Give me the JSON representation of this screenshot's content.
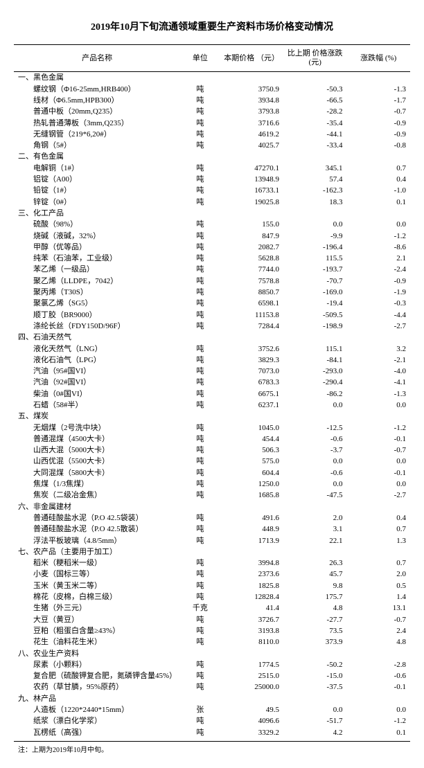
{
  "title": "2019年10月下旬流通领域重要生产资料市场价格变动情况",
  "columns": [
    "产品名称",
    "单位",
    "本期价格\n（元）",
    "比上期\n价格涨跌(元)",
    "涨跌幅 (%)"
  ],
  "footnote": "注：上期为2019年10月中旬。",
  "sections": [
    {
      "heading": "一、黑色金属",
      "rows": [
        {
          "name": "螺纹钢（Φ16-25mm,HRB400）",
          "unit": "吨",
          "price": "3750.9",
          "delta": "-50.3",
          "pct": "-1.3"
        },
        {
          "name": "线材（Φ6.5mm,HPB300）",
          "unit": "吨",
          "price": "3934.8",
          "delta": "-66.5",
          "pct": "-1.7"
        },
        {
          "name": "普通中板（20mm,Q235）",
          "unit": "吨",
          "price": "3793.8",
          "delta": "-28.2",
          "pct": "-0.7"
        },
        {
          "name": "热轧普通薄板（3mm,Q235）",
          "unit": "吨",
          "price": "3716.6",
          "delta": "-35.4",
          "pct": "-0.9"
        },
        {
          "name": "无缝钢管（219*6,20#）",
          "unit": "吨",
          "price": "4619.2",
          "delta": "-44.1",
          "pct": "-0.9"
        },
        {
          "name": "角钢（5#）",
          "unit": "吨",
          "price": "4025.7",
          "delta": "-33.4",
          "pct": "-0.8"
        }
      ]
    },
    {
      "heading": "二、有色金属",
      "rows": [
        {
          "name": "电解铜（1#）",
          "unit": "吨",
          "price": "47270.1",
          "delta": "345.1",
          "pct": "0.7"
        },
        {
          "name": "铝锭（A00）",
          "unit": "吨",
          "price": "13948.9",
          "delta": "57.4",
          "pct": "0.4"
        },
        {
          "name": "铅锭（1#）",
          "unit": "吨",
          "price": "16733.1",
          "delta": "-162.3",
          "pct": "-1.0"
        },
        {
          "name": "锌锭（0#）",
          "unit": "吨",
          "price": "19025.8",
          "delta": "18.3",
          "pct": "0.1"
        }
      ]
    },
    {
      "heading": "三、化工产品",
      "rows": [
        {
          "name": "硫酸（98%）",
          "unit": "吨",
          "price": "155.0",
          "delta": "0.0",
          "pct": "0.0"
        },
        {
          "name": "烧碱（液碱，32%）",
          "unit": "吨",
          "price": "847.9",
          "delta": "-9.9",
          "pct": "-1.2"
        },
        {
          "name": "甲醇（优等品）",
          "unit": "吨",
          "price": "2082.7",
          "delta": "-196.4",
          "pct": "-8.6"
        },
        {
          "name": "纯苯（石油苯，工业级）",
          "unit": "吨",
          "price": "5628.8",
          "delta": "115.5",
          "pct": "2.1"
        },
        {
          "name": "苯乙烯（一级品）",
          "unit": "吨",
          "price": "7744.0",
          "delta": "-193.7",
          "pct": "-2.4"
        },
        {
          "name": "聚乙烯（LLDPE，7042）",
          "unit": "吨",
          "price": "7578.8",
          "delta": "-70.7",
          "pct": "-0.9"
        },
        {
          "name": "聚丙烯（T30S）",
          "unit": "吨",
          "price": "8850.7",
          "delta": "-169.0",
          "pct": "-1.9"
        },
        {
          "name": "聚氯乙烯（SG5）",
          "unit": "吨",
          "price": "6598.1",
          "delta": "-19.4",
          "pct": "-0.3"
        },
        {
          "name": "顺丁胶（BR9000）",
          "unit": "吨",
          "price": "11153.8",
          "delta": "-509.5",
          "pct": "-4.4"
        },
        {
          "name": "涤纶长丝（FDY150D/96F）",
          "unit": "吨",
          "price": "7284.4",
          "delta": "-198.9",
          "pct": "-2.7"
        }
      ]
    },
    {
      "heading": "四、石油天然气",
      "rows": [
        {
          "name": "液化天然气（LNG）",
          "unit": "吨",
          "price": "3752.6",
          "delta": "115.1",
          "pct": "3.2"
        },
        {
          "name": "液化石油气（LPG）",
          "unit": "吨",
          "price": "3829.3",
          "delta": "-84.1",
          "pct": "-2.1"
        },
        {
          "name": "汽油（95#国VI）",
          "unit": "吨",
          "price": "7073.0",
          "delta": "-293.0",
          "pct": "-4.0"
        },
        {
          "name": "汽油（92#国VI）",
          "unit": "吨",
          "price": "6783.3",
          "delta": "-290.4",
          "pct": "-4.1"
        },
        {
          "name": "柴油（0#国VI）",
          "unit": "吨",
          "price": "6675.1",
          "delta": "-86.2",
          "pct": "-1.3"
        },
        {
          "name": "石蜡（58#半）",
          "unit": "吨",
          "price": "6237.1",
          "delta": "0.0",
          "pct": "0.0"
        }
      ]
    },
    {
      "heading": "五、煤炭",
      "rows": [
        {
          "name": "无烟煤（2号洗中块）",
          "unit": "吨",
          "price": "1045.0",
          "delta": "-12.5",
          "pct": "-1.2"
        },
        {
          "name": "普通混煤（4500大卡）",
          "unit": "吨",
          "price": "454.4",
          "delta": "-0.6",
          "pct": "-0.1"
        },
        {
          "name": "山西大混（5000大卡）",
          "unit": "吨",
          "price": "506.3",
          "delta": "-3.7",
          "pct": "-0.7"
        },
        {
          "name": "山西优混（5500大卡）",
          "unit": "吨",
          "price": "575.0",
          "delta": "0.0",
          "pct": "0.0"
        },
        {
          "name": "大同混煤（5800大卡）",
          "unit": "吨",
          "price": "604.4",
          "delta": "-0.6",
          "pct": "-0.1"
        },
        {
          "name": "焦煤（1/3焦煤）",
          "unit": "吨",
          "price": "1250.0",
          "delta": "0.0",
          "pct": "0.0"
        },
        {
          "name": "焦炭（二级冶金焦）",
          "unit": "吨",
          "price": "1685.8",
          "delta": "-47.5",
          "pct": "-2.7"
        }
      ]
    },
    {
      "heading": "六、非金属建材",
      "rows": [
        {
          "name": "普通硅酸盐水泥（P.O 42.5袋装）",
          "unit": "吨",
          "price": "491.6",
          "delta": "2.0",
          "pct": "0.4"
        },
        {
          "name": "普通硅酸盐水泥（P.O 42.5散装）",
          "unit": "吨",
          "price": "448.9",
          "delta": "3.1",
          "pct": "0.7"
        },
        {
          "name": "浮法平板玻璃（4.8/5mm）",
          "unit": "吨",
          "price": "1713.9",
          "delta": "22.1",
          "pct": "1.3"
        }
      ]
    },
    {
      "heading": "七、农产品（主要用于加工）",
      "rows": [
        {
          "name": "稻米（粳稻米一级）",
          "unit": "吨",
          "price": "3994.8",
          "delta": "26.3",
          "pct": "0.7"
        },
        {
          "name": "小麦（国标三等）",
          "unit": "吨",
          "price": "2373.6",
          "delta": "45.7",
          "pct": "2.0"
        },
        {
          "name": "玉米（黄玉米二等）",
          "unit": "吨",
          "price": "1825.8",
          "delta": "9.8",
          "pct": "0.5"
        },
        {
          "name": "棉花（皮棉，白棉三级）",
          "unit": "吨",
          "price": "12828.4",
          "delta": "175.7",
          "pct": "1.4"
        },
        {
          "name": "生猪（外三元）",
          "unit": "千克",
          "price": "41.4",
          "delta": "4.8",
          "pct": "13.1"
        },
        {
          "name": "大豆（黄豆）",
          "unit": "吨",
          "price": "3726.7",
          "delta": "-27.7",
          "pct": "-0.7"
        },
        {
          "name": "豆粕（粗蛋白含量≥43%）",
          "unit": "吨",
          "price": "3193.8",
          "delta": "73.5",
          "pct": "2.4"
        },
        {
          "name": "花生（油料花生米）",
          "unit": "吨",
          "price": "8110.0",
          "delta": "373.9",
          "pct": "4.8"
        }
      ]
    },
    {
      "heading": "八、农业生产资料",
      "rows": [
        {
          "name": "尿素（小颗料）",
          "unit": "吨",
          "price": "1774.5",
          "delta": "-50.2",
          "pct": "-2.8"
        },
        {
          "name": "复合肥（硫酸钾复合肥，氮磷钾含量45%）",
          "unit": "吨",
          "price": "2515.0",
          "delta": "-15.0",
          "pct": "-0.6"
        },
        {
          "name": "农药（草甘膦，95%原药）",
          "unit": "吨",
          "price": "25000.0",
          "delta": "-37.5",
          "pct": "-0.1"
        }
      ]
    },
    {
      "heading": "九、林产品",
      "rows": [
        {
          "name": "人造板（1220*2440*15mm）",
          "unit": "张",
          "price": "49.5",
          "delta": "0.0",
          "pct": "0.0"
        },
        {
          "name": "纸浆（漂白化学浆）",
          "unit": "吨",
          "price": "4096.6",
          "delta": "-51.7",
          "pct": "-1.2"
        },
        {
          "name": "瓦楞纸（高强）",
          "unit": "吨",
          "price": "3329.2",
          "delta": "4.2",
          "pct": "0.1"
        }
      ]
    }
  ]
}
